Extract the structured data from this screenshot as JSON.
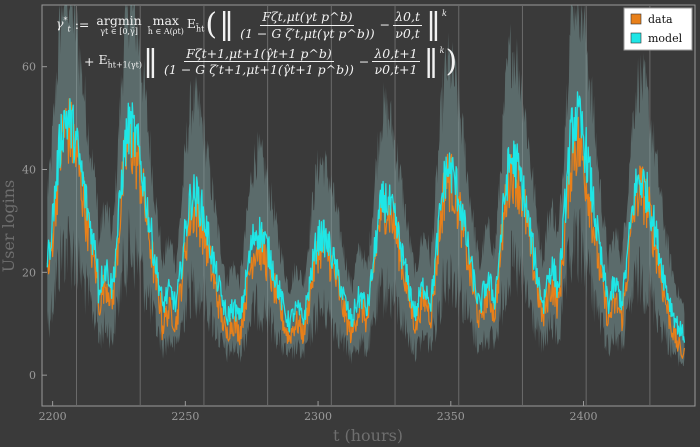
{
  "chart_data": {
    "type": "line",
    "title": "",
    "xlabel": "t (hours)",
    "ylabel": "User logins",
    "xlim": [
      2196,
      2442
    ],
    "ylim": [
      -6,
      72
    ],
    "xticks": [
      2200,
      2250,
      2300,
      2350,
      2400
    ],
    "yticks": [
      0,
      20,
      40,
      60
    ],
    "grid": "vertical lines every 24 hours",
    "legend_placement": "top-right",
    "daily_period_hours": 24,
    "peak_hours": [
      2205,
      2229,
      2253,
      2277,
      2301,
      2325,
      2349,
      2373,
      2397,
      2421
    ],
    "series": [
      {
        "name": "data",
        "color": "#e8801a",
        "style": "spiky line",
        "peak_values": [
          48,
          45,
          32,
          25,
          25,
          33,
          38,
          40,
          45,
          36
        ],
        "trough_values": [
          10,
          3,
          2,
          2,
          2,
          2,
          2,
          2,
          2,
          2
        ]
      },
      {
        "name": "model",
        "color": "#1ee6e6",
        "style": "line with grey confidence band",
        "peak_values": [
          50,
          48,
          35,
          28,
          27,
          34,
          40,
          42,
          50,
          38
        ],
        "trough_values": [
          14,
          6,
          6,
          5,
          5,
          5,
          5,
          5,
          5,
          6
        ]
      }
    ],
    "annotation": {
      "line1": {
        "lhs": "γ",
        "lhs_sub": "t",
        "lhs_sup": "*",
        "assign": ":=",
        "argmin": "argmin",
        "argmin_sub": "γt ∈ [0,γ̄]",
        "max": "max",
        "max_sub": "h̄ ∈ A(ρt)",
        "expect": "E",
        "expect_sub": "h̄t",
        "frac1_num": "Fζt,μt(γt p^b)",
        "frac1_den": "(1 − G ζ′t,μt(γt p^b))",
        "minus": "−",
        "frac2_num": "λ0,t",
        "frac2_den": "ν0,t",
        "power": "k"
      },
      "line2": {
        "plus": "+",
        "expect": "E",
        "expect_sub": "h̄t+1(γt)",
        "frac1_num": "Fζt+1,μt+1(γ̂t+1 p^b)",
        "frac1_den": "(1 − G ζ′t+1,μt+1(γ̂t+1 p^b))",
        "minus": "−",
        "frac2_num": "λ0,t+1",
        "frac2_den": "ν0,t+1",
        "power": "k"
      }
    }
  }
}
